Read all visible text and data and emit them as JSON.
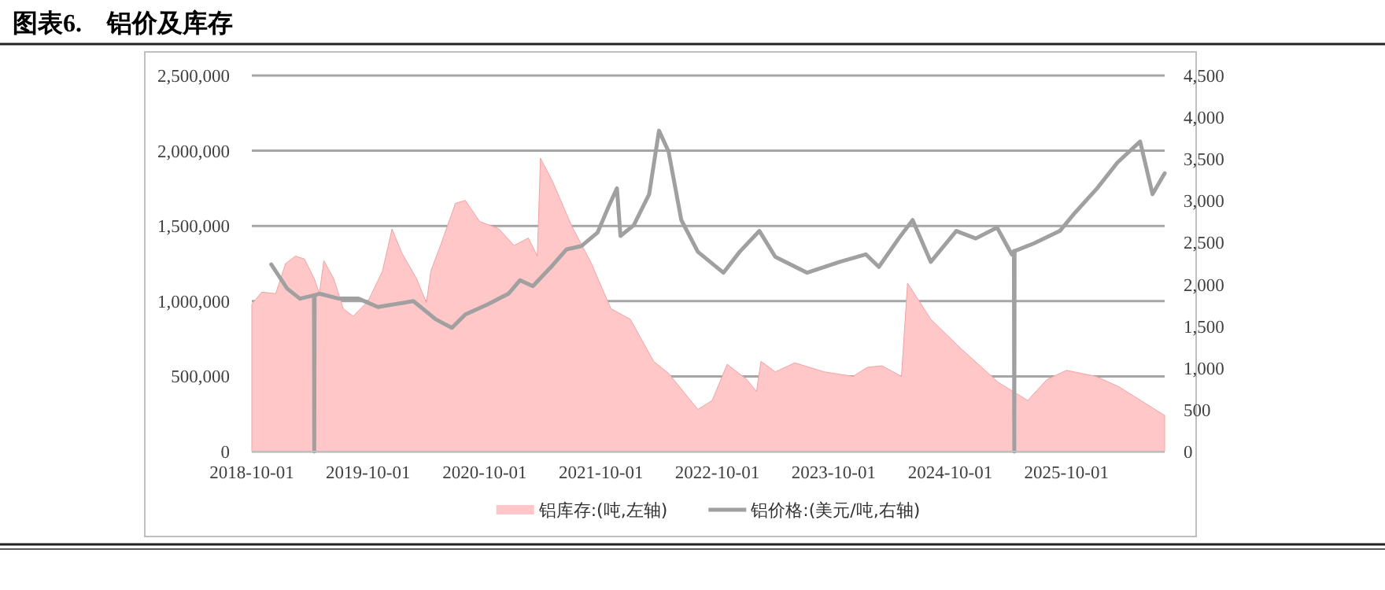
{
  "chart_data": {
    "type": "area",
    "title": "图表6.    铝价及库存",
    "xlim": [
      "2018-10-01",
      "2026-08-05"
    ],
    "xticks": [
      "2018-10-01",
      "2019-10-01",
      "2020-10-01",
      "2021-10-01",
      "2022-10-01",
      "2023-10-01",
      "2024-10-01",
      "2025-10-01"
    ],
    "ylim": [
      0,
      2500000
    ],
    "yticks": [
      {
        "value": 0,
        "label": "0"
      },
      {
        "value": 500000,
        "label": "500,000"
      },
      {
        "value": 1000000,
        "label": "1,000,000"
      },
      {
        "value": 1500000,
        "label": "1,500,000"
      },
      {
        "value": 2000000,
        "label": "2,000,000"
      },
      {
        "value": 2500000,
        "label": "2,500,000"
      }
    ],
    "y2lim": [
      0,
      4500
    ],
    "y2ticks": [
      0,
      500,
      {
        "value": 1000,
        "label": "1,000"
      },
      {
        "value": 1500,
        "label": "1,500"
      },
      {
        "value": 2000,
        "label": "2,000"
      },
      {
        "value": 2500,
        "label": "2,500"
      },
      {
        "value": 3000,
        "label": "3,000"
      },
      {
        "value": 3500,
        "label": "3,500"
      },
      {
        "value": 4000,
        "label": "4,000"
      },
      {
        "value": 4500,
        "label": "4,500"
      }
    ],
    "grid": "y",
    "legend": "bottom",
    "series": [
      {
        "name": "铝库存:(吨,左轴)",
        "color": "#ffc7c7",
        "x": [
          "2018-10-01",
          "2018-11-01",
          "2018-12-15",
          "2019-01-15",
          "2019-02-15",
          "2019-03-15",
          "2019-04-15",
          "2019-05-01",
          "2019-05-15",
          "2019-06-15",
          "2019-07-15",
          "2019-08-15",
          "2019-10-01",
          "2019-11-15",
          "2019-12-15",
          "2020-01-15",
          "2020-03-01",
          "2020-04-01",
          "2020-04-15",
          "2020-05-15",
          "2020-07-01",
          "2020-08-01",
          "2020-09-15",
          "2020-11-15",
          "2021-01-01",
          "2021-02-15",
          "2021-03-15",
          "2021-03-25",
          "2021-05-01",
          "2021-07-01",
          "2021-09-01",
          "2021-11-01",
          "2022-01-01",
          "2022-03-15",
          "2022-05-01",
          "2022-08-01",
          "2022-09-15",
          "2022-11-01",
          "2023-01-01",
          "2023-02-01",
          "2023-02-15",
          "2023-04-01",
          "2023-06-01",
          "2023-09-01",
          "2023-12-01",
          "2024-01-15",
          "2024-03-01",
          "2024-05-01",
          "2024-05-20",
          "2024-08-01",
          "2024-11-01",
          "2025-03-01",
          "2025-06-01",
          "2025-08-01",
          "2025-10-01",
          "2026-01-01",
          "2026-03-15",
          "2026-08-05"
        ],
        "values": [
          980000,
          1060000,
          1050000,
          1250000,
          1300000,
          1280000,
          1150000,
          1050000,
          1270000,
          1150000,
          950000,
          900000,
          1000000,
          1200000,
          1480000,
          1320000,
          1150000,
          990000,
          1200000,
          1370000,
          1650000,
          1670000,
          1530000,
          1480000,
          1370000,
          1420000,
          1300000,
          1950000,
          1800000,
          1500000,
          1250000,
          950000,
          880000,
          600000,
          520000,
          280000,
          340000,
          580000,
          480000,
          400000,
          600000,
          530000,
          590000,
          530000,
          500000,
          560000,
          570000,
          500000,
          1120000,
          880000,
          690000,
          460000,
          340000,
          480000,
          540000,
          500000,
          430000,
          240000
        ]
      },
      {
        "name": "铝价格:(美元/吨,右轴)",
        "type": "line",
        "axis": "y2",
        "color": "#a0a0a0",
        "x": [
          "2018-12-01",
          "2019-01-20",
          "2019-03-01",
          "2019-04-14",
          "2019-04-15",
          "2019-04-16",
          "2019-05-01",
          "2019-07-01",
          "2019-09-01",
          "2019-11-01",
          "2020-02-20",
          "2020-05-01",
          "2020-06-20",
          "2020-08-01",
          "2020-10-10",
          "2020-12-15",
          "2021-01-20",
          "2021-03-01",
          "2021-04-25",
          "2021-06-15",
          "2021-08-01",
          "2021-09-20",
          "2021-10-28",
          "2021-11-20",
          "2021-12-01",
          "2022-01-12",
          "2022-03-01",
          "2022-04-01",
          "2022-05-01",
          "2022-06-10",
          "2022-08-01",
          "2022-10-20",
          "2022-12-10",
          "2023-02-10",
          "2023-04-01",
          "2023-07-10",
          "2023-10-20",
          "2024-01-10",
          "2024-02-20",
          "2024-04-28",
          "2024-06-05",
          "2024-08-01",
          "2024-10-20",
          "2024-12-20",
          "2025-02-25",
          "2025-04-12",
          "2025-04-19",
          "2025-04-20",
          "2025-04-21",
          "2025-06-20",
          "2025-09-10",
          "2025-10-28",
          "2026-01-05",
          "2026-03-10",
          "2026-05-20",
          "2026-06-28",
          "2026-08-05"
        ],
        "values": [
          2240,
          1950,
          1830,
          1870,
          0,
          1870,
          1890,
          1830,
          1830,
          1730,
          1800,
          1580,
          1480,
          1640,
          1760,
          1890,
          2050,
          1980,
          2200,
          2420,
          2460,
          2620,
          2960,
          3150,
          2580,
          2710,
          3080,
          3840,
          3590,
          2770,
          2390,
          2140,
          2390,
          2640,
          2330,
          2140,
          2270,
          2360,
          2210,
          2580,
          2770,
          2270,
          2640,
          2550,
          2680,
          2360,
          2400,
          0,
          2400,
          2490,
          2640,
          2860,
          3150,
          3460,
          3710,
          3080,
          3330
        ]
      }
    ]
  }
}
